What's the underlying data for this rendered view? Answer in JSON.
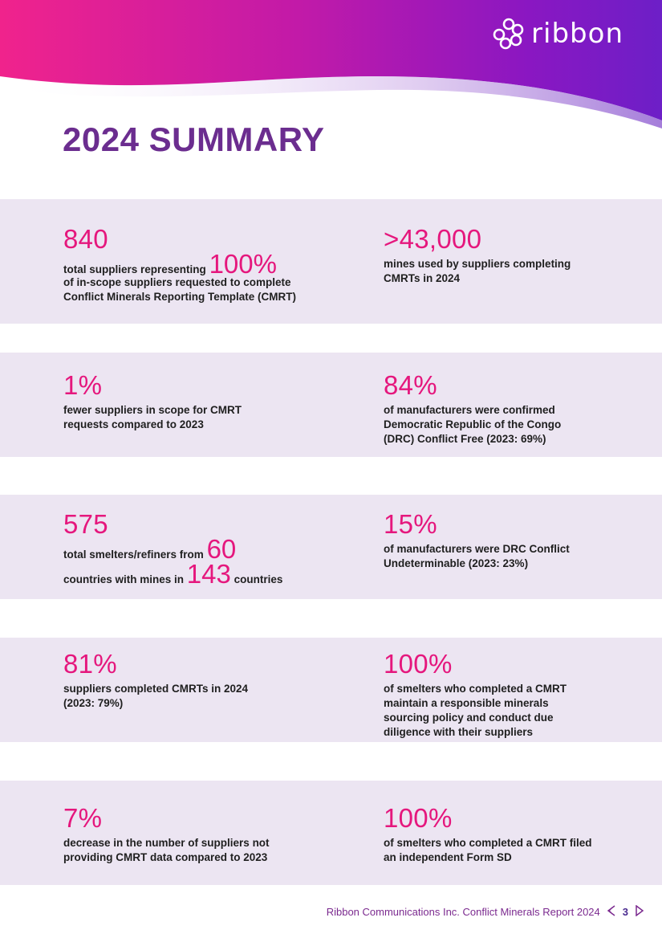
{
  "brand": {
    "logo_text": "ribbon"
  },
  "page_title": "2024 SUMMARY",
  "rows": [
    {
      "left": {
        "big": "840",
        "line1_pre": "total suppliers representing",
        "line1_big": "100%",
        "line2": "of in-scope suppliers requested to complete",
        "line3": "Conflict Minerals Reporting Template (CMRT)"
      },
      "right": {
        "big": ">43,000",
        "desc": "mines used by suppliers completing CMRTs in 2024"
      }
    },
    {
      "left": {
        "big": "1%",
        "desc": "fewer suppliers in scope for CMRT requests compared to 2023"
      },
      "right": {
        "big": "84%",
        "desc": "of manufacturers were confirmed Democratic Republic of the Congo (DRC) Conflict Free (2023: 69%)"
      }
    },
    {
      "left": {
        "big": "575",
        "line1_pre": "total smelters/refiners from",
        "line1_big": "60",
        "line2_pre": "countries with mines in",
        "line2_big": "143",
        "line2_post": "countries"
      },
      "right": {
        "big": "15%",
        "desc": "of manufacturers were DRC Conflict Undeterminable (2023: 23%)"
      }
    },
    {
      "left": {
        "big": "81%",
        "desc": "suppliers completed CMRTs in 2024 (2023: 79%)"
      },
      "right": {
        "big": "100%",
        "desc": "of smelters who completed a CMRT maintain a responsible minerals sourcing policy and conduct due diligence with their suppliers"
      }
    },
    {
      "left": {
        "big": "7%",
        "desc": "decrease in the number of suppliers not providing CMRT data  compared to 2023"
      },
      "right": {
        "big": "100%",
        "desc": "of smelters who completed a CMRT filed an independent Form SD"
      }
    }
  ],
  "footer": {
    "text": "Ribbon Communications Inc. Conflict Minerals Report 2024",
    "page_number": "3"
  },
  "colors": {
    "accent": "#e5177d",
    "title": "#6b2d8f",
    "band": "#ece5f2"
  }
}
